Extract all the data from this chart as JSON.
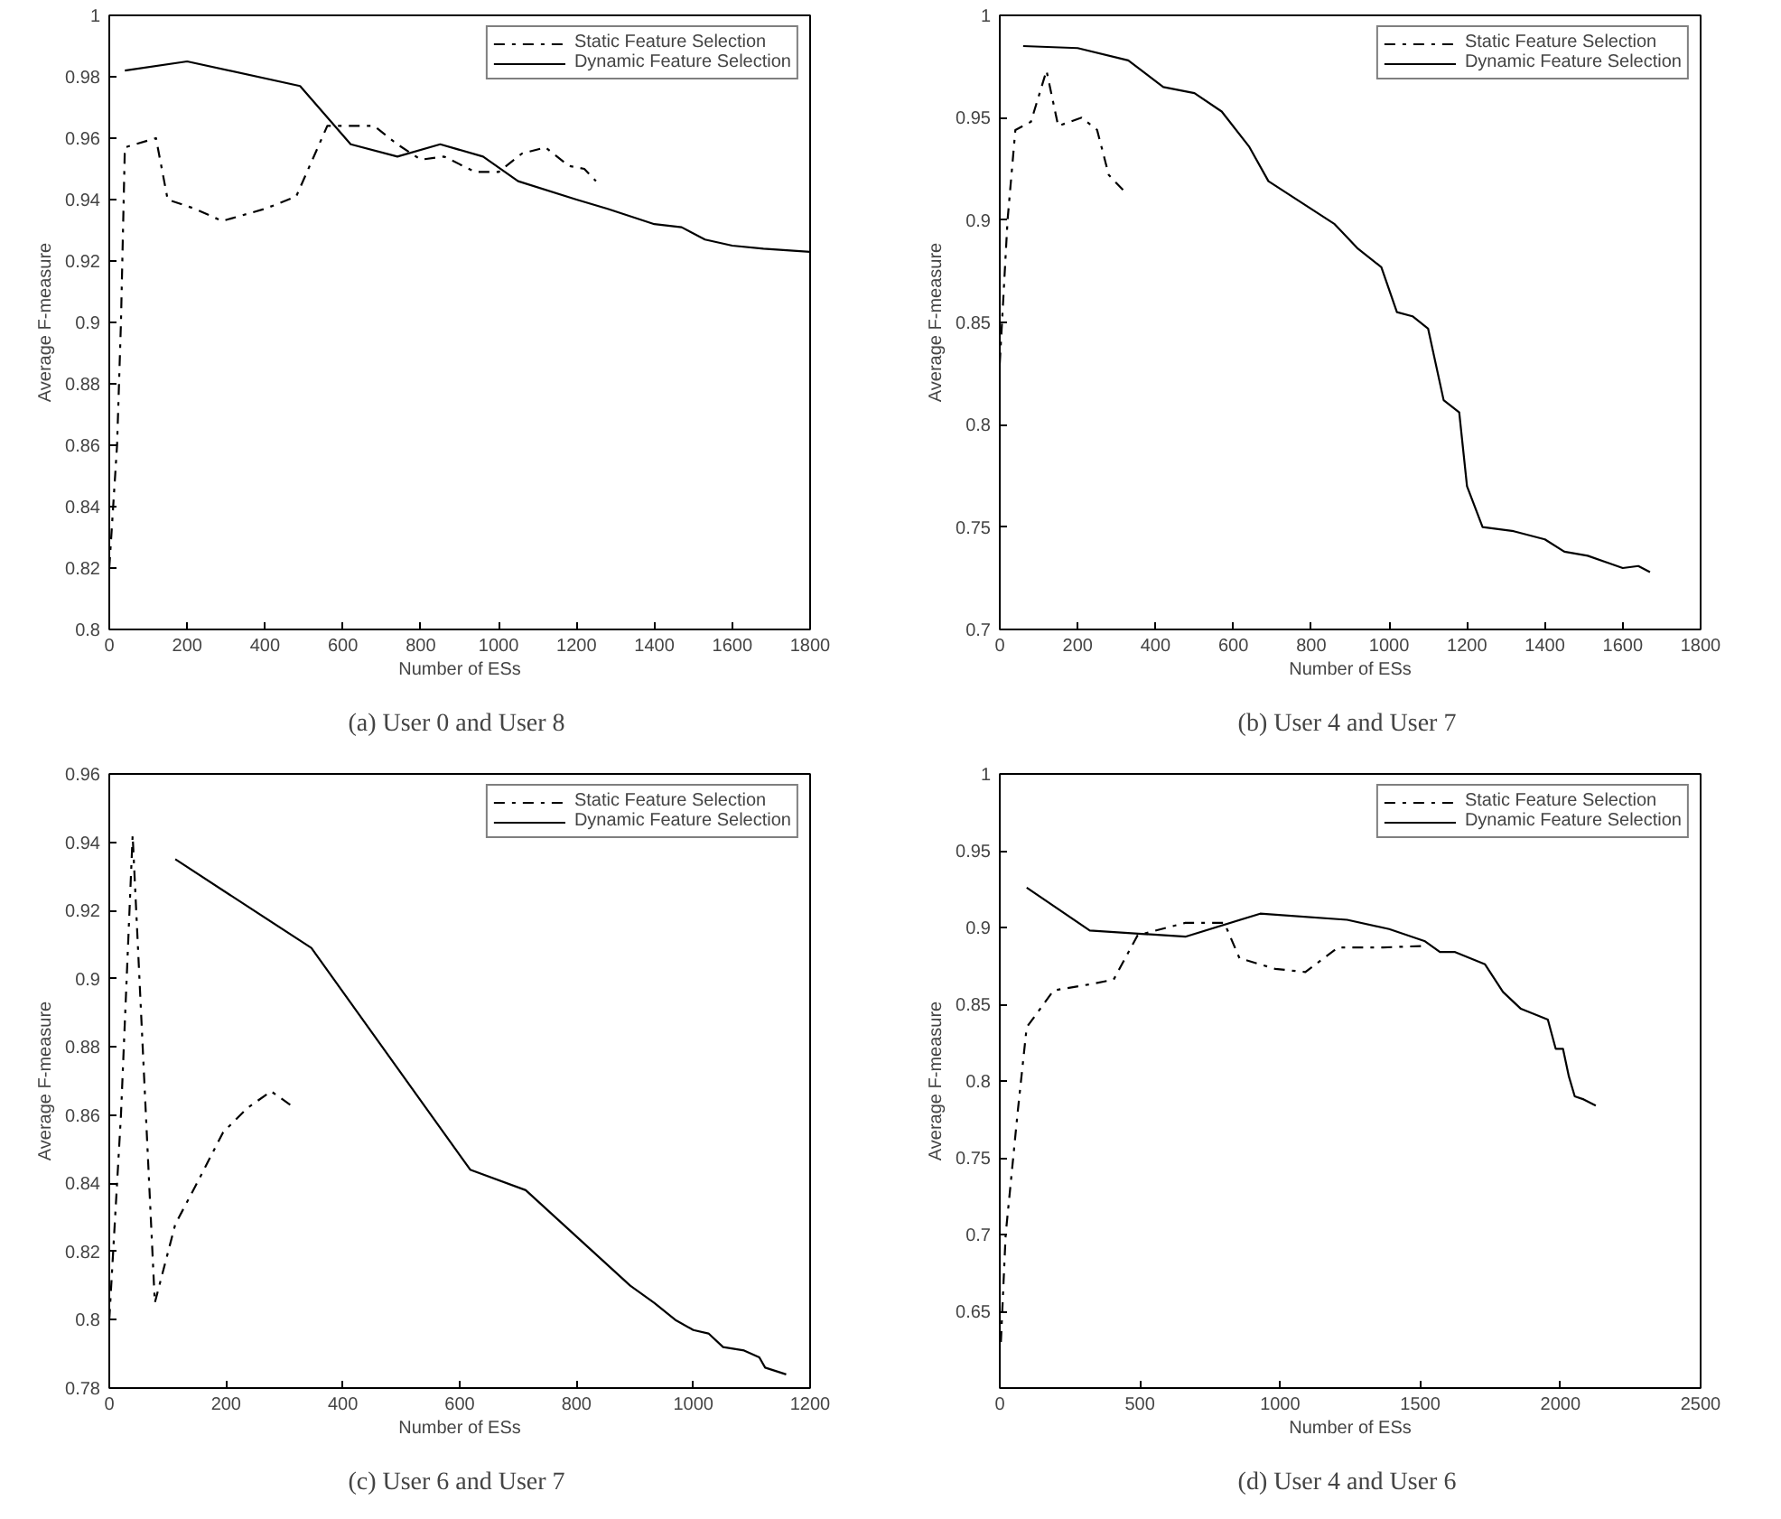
{
  "chart_data": [
    {
      "type": "line",
      "xlabel": "Number of ESs",
      "ylabel": "Average F-measure",
      "annotations": [
        "(a)  User 0 and User 8"
      ],
      "xlim": [
        0,
        1800
      ],
      "ylim": [
        0.8,
        1
      ],
      "xticks": [
        0,
        200,
        400,
        600,
        800,
        1000,
        1200,
        1400,
        1600,
        1800
      ],
      "yticks": [
        0.8,
        0.82,
        0.84,
        0.86,
        0.88,
        0.9,
        0.92,
        0.94,
        0.96,
        0.98,
        1
      ],
      "grid": false,
      "legend": "top right",
      "marker": "none",
      "series": [
        {
          "name": "Static Feature Selection",
          "color": "#000000",
          "line_style": "dashdot",
          "x": [
            0,
            20,
            30,
            40,
            120,
            150,
            220,
            290,
            400,
            480,
            560,
            680,
            740,
            800,
            860,
            940,
            1000,
            1060,
            1120,
            1180,
            1220,
            1250
          ],
          "values": [
            0.82,
            0.86,
            0.9,
            0.957,
            0.96,
            0.94,
            0.937,
            0.933,
            0.937,
            0.941,
            0.964,
            0.964,
            0.958,
            0.953,
            0.954,
            0.949,
            0.949,
            0.955,
            0.957,
            0.951,
            0.95,
            0.946
          ]
        },
        {
          "name": "Dynamic Feature Selection",
          "color": "#000000",
          "line_style": "solid",
          "x": [
            40,
            200,
            490,
            620,
            740,
            850,
            960,
            1050,
            1200,
            1280,
            1400,
            1470,
            1530,
            1600,
            1680,
            1800
          ],
          "values": [
            0.982,
            0.985,
            0.977,
            0.958,
            0.954,
            0.958,
            0.954,
            0.946,
            0.94,
            0.937,
            0.932,
            0.931,
            0.927,
            0.925,
            0.924,
            0.923
          ]
        }
      ]
    },
    {
      "type": "line",
      "xlabel": "Number of ESs",
      "ylabel": "Average F-measure",
      "annotations": [
        "(b)  User 4 and User 7"
      ],
      "xlim": [
        0,
        1800
      ],
      "ylim": [
        0.7,
        1
      ],
      "xticks": [
        0,
        200,
        400,
        600,
        800,
        1000,
        1200,
        1400,
        1600,
        1800
      ],
      "yticks": [
        0.7,
        0.75,
        0.8,
        0.85,
        0.9,
        0.95,
        1
      ],
      "grid": false,
      "legend": "top right",
      "marker": "none",
      "series": [
        {
          "name": "Static Feature Selection",
          "color": "#000000",
          "line_style": "dashdot",
          "x": [
            0,
            20,
            40,
            80,
            120,
            150,
            210,
            250,
            280,
            320
          ],
          "values": [
            0.83,
            0.9,
            0.944,
            0.948,
            0.973,
            0.946,
            0.95,
            0.944,
            0.922,
            0.914
          ]
        },
        {
          "name": "Dynamic Feature Selection",
          "color": "#000000",
          "line_style": "solid",
          "x": [
            60,
            200,
            330,
            420,
            500,
            570,
            640,
            690,
            860,
            920,
            980,
            1020,
            1060,
            1100,
            1140,
            1180,
            1200,
            1240,
            1320,
            1400,
            1450,
            1510,
            1600,
            1640,
            1670
          ],
          "values": [
            0.985,
            0.984,
            0.978,
            0.965,
            0.962,
            0.953,
            0.936,
            0.919,
            0.898,
            0.886,
            0.877,
            0.855,
            0.853,
            0.847,
            0.812,
            0.806,
            0.77,
            0.75,
            0.748,
            0.744,
            0.738,
            0.736,
            0.73,
            0.731,
            0.728
          ]
        }
      ]
    },
    {
      "type": "line",
      "xlabel": "Number of ESs",
      "ylabel": "Average F-measure",
      "annotations": [
        "(c)  User 6 and User 7"
      ],
      "xlim": [
        0,
        1200
      ],
      "ylim": [
        0.78,
        0.96
      ],
      "xticks": [
        0,
        200,
        400,
        600,
        800,
        1000,
        1200
      ],
      "yticks": [
        0.78,
        0.8,
        0.82,
        0.84,
        0.86,
        0.88,
        0.9,
        0.92,
        0.94,
        0.96
      ],
      "grid": false,
      "legend": "top right",
      "marker": "none",
      "series": [
        {
          "name": "Static Feature Selection",
          "color": "#000000",
          "line_style": "dashdot",
          "x": [
            0,
            20,
            40,
            78,
            113,
            150,
            195,
            236,
            277,
            318
          ],
          "values": [
            0.8,
            0.86,
            0.942,
            0.805,
            0.828,
            0.84,
            0.855,
            0.862,
            0.867,
            0.862
          ]
        },
        {
          "name": "Dynamic Feature Selection",
          "color": "#000000",
          "line_style": "solid",
          "x": [
            113,
            346,
            618,
            713,
            892,
            933,
            969,
            1000,
            1026,
            1051,
            1087,
            1113,
            1123,
            1159
          ],
          "values": [
            0.935,
            0.909,
            0.844,
            0.838,
            0.81,
            0.805,
            0.8,
            0.797,
            0.796,
            0.792,
            0.791,
            0.789,
            0.786,
            0.784
          ]
        }
      ]
    },
    {
      "type": "line",
      "xlabel": "Number of ESs",
      "ylabel": "Average F-measure",
      "annotations": [
        "(d)  User 4 and User 6"
      ],
      "xlim": [
        0,
        2500
      ],
      "ylim": [
        0.6,
        1
      ],
      "xticks": [
        0,
        500,
        1000,
        1500,
        2000,
        2500
      ],
      "yticks": [
        0.65,
        0.7,
        0.75,
        0.8,
        0.85,
        0.9,
        0.95,
        1
      ],
      "grid": false,
      "legend": "top right",
      "marker": "none",
      "series": [
        {
          "name": "Static Feature Selection",
          "color": "#000000",
          "line_style": "dashdot",
          "x": [
            4,
            21,
            64,
            96,
            192,
            321,
            406,
            492,
            662,
            801,
            855,
            983,
            1090,
            1207,
            1368,
            1517
          ],
          "values": [
            0.63,
            0.7,
            0.78,
            0.835,
            0.859,
            0.863,
            0.866,
            0.895,
            0.903,
            0.903,
            0.88,
            0.873,
            0.871,
            0.887,
            0.887,
            0.888
          ]
        },
        {
          "name": "Dynamic Feature Selection",
          "color": "#000000",
          "line_style": "solid",
          "x": [
            96,
            321,
            662,
            929,
            1239,
            1389,
            1517,
            1570,
            1624,
            1731,
            1795,
            1859,
            1955,
            1983,
            2009,
            2030,
            2051,
            2083,
            2126
          ],
          "values": [
            0.926,
            0.898,
            0.894,
            0.909,
            0.905,
            0.899,
            0.891,
            0.884,
            0.884,
            0.876,
            0.858,
            0.847,
            0.84,
            0.821,
            0.821,
            0.803,
            0.79,
            0.788,
            0.784
          ]
        }
      ]
    }
  ]
}
